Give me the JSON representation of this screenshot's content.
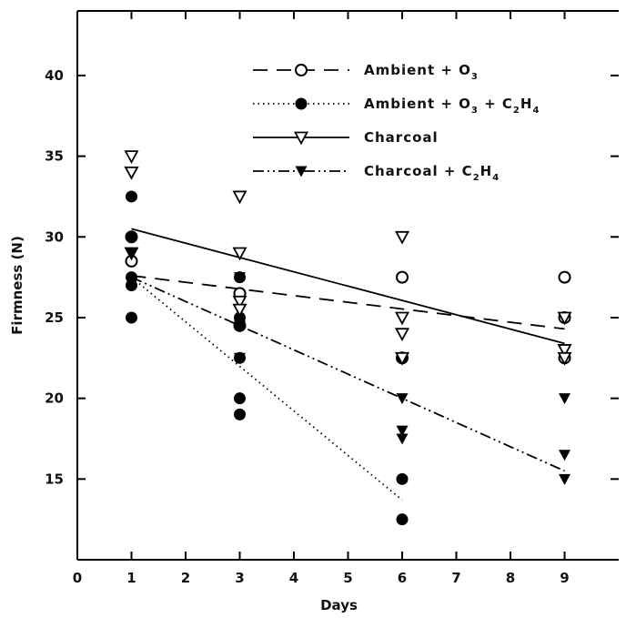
{
  "chart_data": {
    "type": "scatter",
    "title": "",
    "xlabel": "Days",
    "ylabel": "Firmness (N)",
    "xlim": [
      0,
      10
    ],
    "ylim": [
      10,
      44
    ],
    "x_ticks": [
      0,
      1,
      2,
      3,
      4,
      5,
      6,
      7,
      8,
      9
    ],
    "y_ticks": [
      15,
      20,
      25,
      30,
      35,
      40
    ],
    "grid": false,
    "legend_position": "top-right",
    "series": [
      {
        "name": "Ambient + O3",
        "legend_text": [
          "Ambient + O",
          "3",
          ""
        ],
        "marker": "open-circle",
        "line_style": "dashed",
        "points": [
          [
            1,
            28.5
          ],
          [
            1,
            30
          ],
          [
            3,
            26.5
          ],
          [
            3,
            24.5
          ],
          [
            6,
            27.5
          ],
          [
            6,
            22.5
          ],
          [
            9,
            27.5
          ],
          [
            9,
            25
          ],
          [
            9,
            22.5
          ]
        ],
        "fit": [
          [
            1,
            27.6
          ],
          [
            9,
            24.3
          ]
        ]
      },
      {
        "name": "Ambient + O3 + C2H4",
        "legend_text": [
          "Ambient + O",
          "3",
          " + C",
          "2",
          "H",
          "4"
        ],
        "marker": "filled-circle",
        "line_style": "dotted",
        "points": [
          [
            1,
            32.5
          ],
          [
            1,
            30
          ],
          [
            1,
            27.5
          ],
          [
            1,
            27
          ],
          [
            1,
            25
          ],
          [
            3,
            27.5
          ],
          [
            3,
            25
          ],
          [
            3,
            24.5
          ],
          [
            3,
            22.5
          ],
          [
            3,
            20
          ],
          [
            3,
            19
          ],
          [
            6,
            22.5
          ],
          [
            6,
            15
          ],
          [
            6,
            12.5
          ]
        ],
        "fit": [
          [
            1,
            27.5
          ],
          [
            6,
            13.7
          ]
        ]
      },
      {
        "name": "Charcoal",
        "legend_text": [
          "Charcoal"
        ],
        "marker": "open-triangle-down",
        "line_style": "solid",
        "points": [
          [
            1,
            35
          ],
          [
            1,
            34
          ],
          [
            1,
            29
          ],
          [
            3,
            32.5
          ],
          [
            3,
            29
          ],
          [
            3,
            26
          ],
          [
            3,
            25.5
          ],
          [
            6,
            30
          ],
          [
            6,
            25
          ],
          [
            6,
            24
          ],
          [
            6,
            22.5
          ],
          [
            9,
            25
          ],
          [
            9,
            23
          ],
          [
            9,
            22.5
          ]
        ],
        "fit": [
          [
            1,
            30.5
          ],
          [
            9,
            23.4
          ]
        ]
      },
      {
        "name": "Charcoal + C2H4",
        "legend_text": [
          "Charcoal + C",
          "2",
          "H",
          "4"
        ],
        "marker": "filled-triangle-down",
        "line_style": "dash-dot-dot",
        "points": [
          [
            1,
            29
          ],
          [
            3,
            27.5
          ],
          [
            3,
            24.5
          ],
          [
            3,
            22.5
          ],
          [
            6,
            20
          ],
          [
            6,
            18
          ],
          [
            6,
            17.5
          ],
          [
            9,
            20
          ],
          [
            9,
            16.5
          ],
          [
            9,
            15
          ]
        ],
        "fit": [
          [
            1,
            27.5
          ],
          [
            9,
            15.5
          ]
        ]
      }
    ]
  }
}
